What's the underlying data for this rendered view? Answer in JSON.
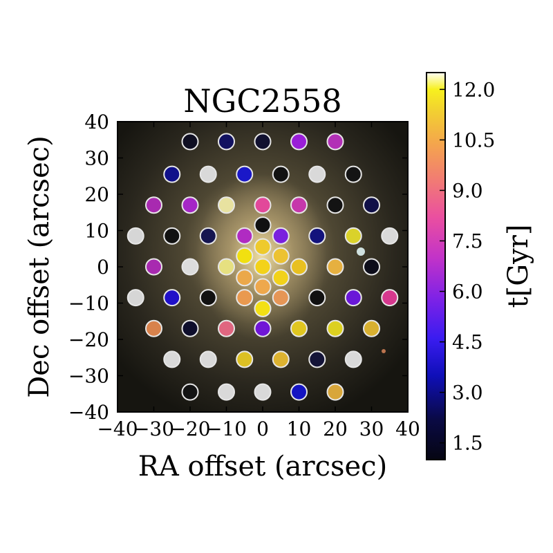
{
  "chart_data": {
    "type": "scatter",
    "title": "NGC2558",
    "xlabel": "RA offset (arcsec)",
    "ylabel": "Dec offset (arcsec)",
    "xlim": [
      -40,
      40
    ],
    "ylim": [
      -40,
      40
    ],
    "x_ticks": [
      -40,
      -30,
      -20,
      -10,
      0,
      10,
      20,
      30,
      40
    ],
    "y_ticks": [
      -40,
      -30,
      -20,
      -10,
      0,
      10,
      20,
      30,
      40
    ],
    "x_tick_labels": [
      "−40",
      "−30",
      "−20",
      "−10",
      "0",
      "10",
      "20",
      "30",
      "40"
    ],
    "y_tick_labels": [
      "−40",
      "−30",
      "−20",
      "−10",
      "0",
      "10",
      "20",
      "30",
      "40"
    ],
    "grid": false,
    "background": "galaxy image (SDSS-like color composite)",
    "colorbar": {
      "label": "t[Gyr]",
      "cmap": "gnuplot2-like (black → blue → purple → pink → orange → yellow → white)",
      "range": [
        1.0,
        12.5
      ],
      "ticks": [
        1.5,
        3.0,
        4.5,
        6.0,
        7.5,
        9.0,
        10.5,
        12.0
      ],
      "tick_labels": [
        "1.5",
        "3.0",
        "4.5",
        "6.0",
        "7.5",
        "9.0",
        "10.5",
        "12.0"
      ],
      "stops": [
        {
          "v": 1.0,
          "color": "#060612"
        },
        {
          "v": 2.2,
          "color": "#0a0a45"
        },
        {
          "v": 3.5,
          "color": "#0f0fb8"
        },
        {
          "v": 4.6,
          "color": "#3a1cf0"
        },
        {
          "v": 5.8,
          "color": "#7f22e6"
        },
        {
          "v": 7.0,
          "color": "#c233c8"
        },
        {
          "v": 8.2,
          "color": "#ea4fa0"
        },
        {
          "v": 9.4,
          "color": "#f27f70"
        },
        {
          "v": 10.4,
          "color": "#f4a64c"
        },
        {
          "v": 11.4,
          "color": "#f2d230"
        },
        {
          "v": 12.0,
          "color": "#f7f01e"
        },
        {
          "v": 12.5,
          "color": "#fefef6"
        }
      ]
    },
    "points": [
      {
        "x": -20,
        "y": 34.5,
        "color": "#0f0f22"
      },
      {
        "x": -10,
        "y": 34.5,
        "color": "#121260"
      },
      {
        "x": 0,
        "y": 34.5,
        "color": "#111130"
      },
      {
        "x": 10,
        "y": 34.5,
        "color": "#9a1ed8"
      },
      {
        "x": 20,
        "y": 34.5,
        "color": "#b230b6"
      },
      {
        "x": -25,
        "y": 25.5,
        "color": "#10108a"
      },
      {
        "x": -15,
        "y": 25.5,
        "color": "#d9d9d9"
      },
      {
        "x": -5,
        "y": 25.5,
        "color": "#1a18c8"
      },
      {
        "x": 5,
        "y": 25.5,
        "color": "#121212"
      },
      {
        "x": 15,
        "y": 25.5,
        "color": "#d9d9d9"
      },
      {
        "x": 25,
        "y": 25.5,
        "color": "#141414"
      },
      {
        "x": -30,
        "y": 17,
        "color": "#a82ab0"
      },
      {
        "x": -20,
        "y": 17,
        "color": "#a526c6"
      },
      {
        "x": -10,
        "y": 17,
        "color": "#e8e2a0"
      },
      {
        "x": 0,
        "y": 17,
        "color": "#e2489a"
      },
      {
        "x": 10,
        "y": 17,
        "color": "#c637ab"
      },
      {
        "x": 20,
        "y": 17,
        "color": "#131313"
      },
      {
        "x": 30,
        "y": 17,
        "color": "#101048"
      },
      {
        "x": -35,
        "y": 8.5,
        "color": "#d6d6d6"
      },
      {
        "x": -25,
        "y": 8.5,
        "color": "#111111"
      },
      {
        "x": -15,
        "y": 8.5,
        "color": "#151550"
      },
      {
        "x": -5,
        "y": 8.5,
        "color": "#b02bc2"
      },
      {
        "x": 0,
        "y": 11.5,
        "color": "#111111"
      },
      {
        "x": 5,
        "y": 8.5,
        "color": "#7a20de"
      },
      {
        "x": 15,
        "y": 8.5,
        "color": "#13137c"
      },
      {
        "x": 25,
        "y": 8.5,
        "color": "#dad22a"
      },
      {
        "x": 35,
        "y": 8.5,
        "color": "#d9d9d9"
      },
      {
        "x": -5,
        "y": 3,
        "color": "#f1e010"
      },
      {
        "x": 0,
        "y": 5.5,
        "color": "#eeca2c"
      },
      {
        "x": 5,
        "y": 3,
        "color": "#ecc232"
      },
      {
        "x": -30,
        "y": 0,
        "color": "#a82ab0"
      },
      {
        "x": -20,
        "y": 0,
        "color": "#dcdcdc"
      },
      {
        "x": -10,
        "y": 0,
        "color": "#e6e080"
      },
      {
        "x": 0,
        "y": 0,
        "color": "#f3d21a"
      },
      {
        "x": 10,
        "y": 0,
        "color": "#e8c020"
      },
      {
        "x": 20,
        "y": 0,
        "color": "#e6b040"
      },
      {
        "x": 30,
        "y": 0,
        "color": "#0d0d1a"
      },
      {
        "x": -5,
        "y": -3,
        "color": "#eba84a"
      },
      {
        "x": 5,
        "y": -3,
        "color": "#f2d21a"
      },
      {
        "x": 0,
        "y": -5.5,
        "color": "#eea84c"
      },
      {
        "x": -35,
        "y": -8.5,
        "color": "#d6d6d6"
      },
      {
        "x": -25,
        "y": -8.5,
        "color": "#2010c8"
      },
      {
        "x": -15,
        "y": -8.5,
        "color": "#111111"
      },
      {
        "x": -5,
        "y": -8.5,
        "color": "#e9994f"
      },
      {
        "x": 0,
        "y": -11.5,
        "color": "#f3e014"
      },
      {
        "x": 5,
        "y": -8.5,
        "color": "#e69656"
      },
      {
        "x": 15,
        "y": -8.5,
        "color": "#111111"
      },
      {
        "x": 25,
        "y": -8.5,
        "color": "#6a18d8"
      },
      {
        "x": 35,
        "y": -8.5,
        "color": "#d6388e"
      },
      {
        "x": -30,
        "y": -17,
        "color": "#d8824c"
      },
      {
        "x": -20,
        "y": -17,
        "color": "#0e0e2c"
      },
      {
        "x": -10,
        "y": -17,
        "color": "#e06680"
      },
      {
        "x": 0,
        "y": -17,
        "color": "#7016d6"
      },
      {
        "x": 10,
        "y": -17,
        "color": "#e0c620"
      },
      {
        "x": 20,
        "y": -17,
        "color": "#dcd020"
      },
      {
        "x": 30,
        "y": -17,
        "color": "#d8b030"
      },
      {
        "x": -25,
        "y": -25.5,
        "color": "#d9d9d9"
      },
      {
        "x": -15,
        "y": -25.5,
        "color": "#d9d9d9"
      },
      {
        "x": -5,
        "y": -25.5,
        "color": "#dcc024"
      },
      {
        "x": 5,
        "y": -25.5,
        "color": "#dcb230"
      },
      {
        "x": 15,
        "y": -25.5,
        "color": "#141438"
      },
      {
        "x": 25,
        "y": -25.5,
        "color": "#d9d9d9"
      },
      {
        "x": -20,
        "y": -34.5,
        "color": "#131313"
      },
      {
        "x": -10,
        "y": -34.5,
        "color": "#d9d9d9"
      },
      {
        "x": 0,
        "y": -34.5,
        "color": "#d9d9d9"
      },
      {
        "x": 10,
        "y": -34.5,
        "color": "#1414c2"
      },
      {
        "x": 20,
        "y": -34.5,
        "color": "#d8a63a"
      }
    ]
  }
}
